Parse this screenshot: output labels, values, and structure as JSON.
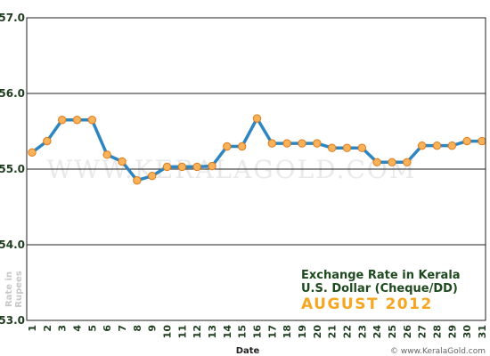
{
  "chart_data": {
    "type": "line",
    "title": "Exchange Rate in Kerala",
    "subtitle": "U.S. Dollar (Cheque/DD)",
    "period": "AUGUST 2012",
    "xlabel": "Date",
    "ylabel_line1": "Rate in",
    "ylabel_line2": "Rupees",
    "watermark": "WWW.KERALAGOLD.COM",
    "credit": "© www.KeralaGold.com",
    "ylim": [
      53.0,
      57.0
    ],
    "yticks": [
      "53.0",
      "54.0",
      "55.0",
      "56.0",
      "57.0"
    ],
    "categories": [
      "1",
      "2",
      "3",
      "4",
      "5",
      "6",
      "7",
      "8",
      "9",
      "10",
      "11",
      "12",
      "13",
      "14",
      "15",
      "16",
      "17",
      "18",
      "19",
      "20",
      "21",
      "22",
      "23",
      "24",
      "25",
      "26",
      "27",
      "28",
      "29",
      "30",
      "31"
    ],
    "values": [
      55.22,
      55.37,
      55.65,
      55.65,
      55.65,
      55.19,
      55.1,
      54.85,
      54.91,
      55.03,
      55.03,
      55.03,
      55.04,
      55.3,
      55.3,
      55.67,
      55.34,
      55.34,
      55.34,
      55.34,
      55.28,
      55.28,
      55.28,
      55.09,
      55.09,
      55.09,
      55.31,
      55.31,
      55.31,
      55.37,
      55.37
    ],
    "grid": true,
    "colors": {
      "line": "#2e86c1",
      "marker_fill": "#f7b25a",
      "marker_stroke": "#e07a1a",
      "title_text": "#1f4a1f",
      "period_text": "#f5a623"
    }
  }
}
